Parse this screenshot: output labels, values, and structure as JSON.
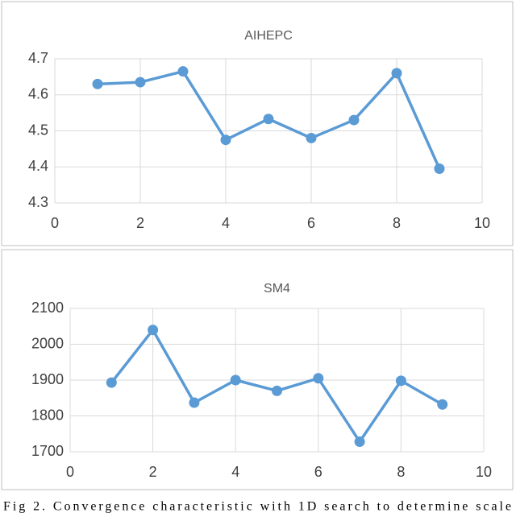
{
  "chart_data": [
    {
      "type": "line",
      "title": "AIHEPC",
      "x": [
        1,
        2,
        3,
        4,
        5,
        6,
        7,
        8,
        9
      ],
      "values": [
        4.63,
        4.635,
        4.665,
        4.475,
        4.533,
        4.48,
        4.53,
        4.66,
        4.395
      ],
      "color": "#5b9bd5",
      "xlim": [
        0,
        10
      ],
      "xticks": [
        0,
        2,
        4,
        6,
        8,
        10
      ],
      "ylim": [
        4.3,
        4.7
      ],
      "yticks": [
        4.3,
        4.4,
        4.5,
        4.6,
        4.7
      ],
      "grid": true
    },
    {
      "type": "line",
      "title": "SM4",
      "x": [
        1,
        2,
        3,
        4,
        5,
        6,
        7,
        8,
        9
      ],
      "values": [
        1893,
        2040,
        1837,
        1900,
        1870,
        1905,
        1728,
        1898,
        1832
      ],
      "color": "#5b9bd5",
      "xlim": [
        0,
        10
      ],
      "xticks": [
        0,
        2,
        4,
        6,
        8,
        10
      ],
      "ylim": [
        1700,
        2100
      ],
      "yticks": [
        1700,
        1800,
        1900,
        2000,
        2100
      ],
      "grid": true
    }
  ],
  "caption": "Fig 2. Convergence characteristic with 1D search to determine scale"
}
